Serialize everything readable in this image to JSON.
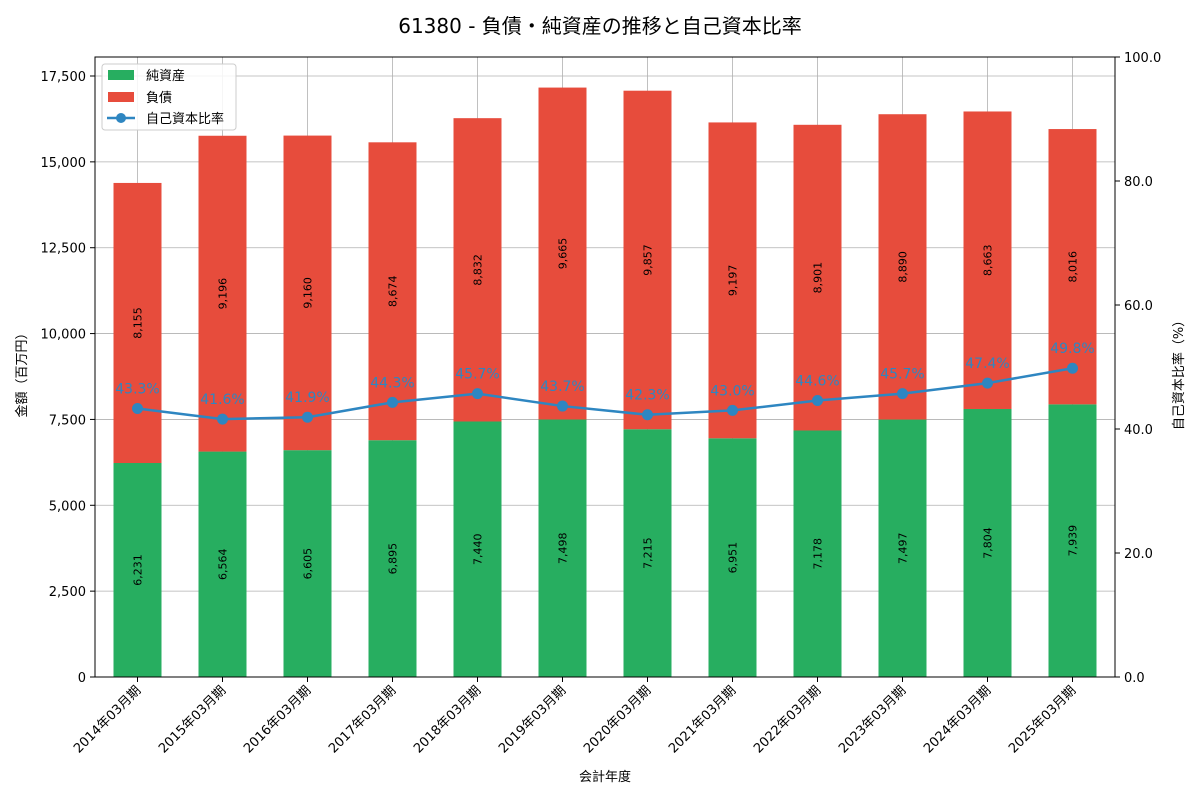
{
  "chart_data": {
    "type": "bar",
    "title": "61380 - 負債・純資産の推移と自己資本比率",
    "xlabel": "会計年度",
    "ylabel": "金額（百万円）",
    "y2label": "自己資本比率（%）",
    "ylim": [
      0,
      17500
    ],
    "y2lim": [
      0,
      100
    ],
    "stacked": true,
    "grid": true,
    "legend_position": "top-left",
    "categories": [
      "2014年03月期",
      "2015年03月期",
      "2016年03月期",
      "2017年03月期",
      "2018年03月期",
      "2019年03月期",
      "2020年03月期",
      "2021年03月期",
      "2022年03月期",
      "2023年03月期",
      "2024年03月期",
      "2025年03月期"
    ],
    "series": [
      {
        "name": "純資産",
        "type": "bar",
        "color": "#27ae60",
        "values": [
          6231,
          6564,
          6605,
          6895,
          7440,
          7498,
          7215,
          6951,
          7178,
          7497,
          7804,
          7939
        ],
        "labels": [
          "6,231",
          "6,564",
          "6,605",
          "6,895",
          "7,440",
          "7,498",
          "7,215",
          "6,951",
          "7,178",
          "7,497",
          "7,804",
          "7,939"
        ]
      },
      {
        "name": "負債",
        "type": "bar",
        "color": "#e74c3c",
        "values": [
          8155,
          9196,
          9160,
          8674,
          8832,
          9665,
          9857,
          9197,
          8901,
          8890,
          8663,
          8016
        ],
        "labels": [
          "8,155",
          "9,196",
          "9,160",
          "8,674",
          "8,832",
          "9,665",
          "9,857",
          "9,197",
          "8,901",
          "8,890",
          "8,663",
          "8,016"
        ]
      },
      {
        "name": "自己資本比率",
        "type": "line",
        "axis": "right",
        "color": "#2e86c1",
        "values": [
          43.3,
          41.6,
          41.9,
          44.3,
          45.7,
          43.7,
          42.3,
          43.0,
          44.6,
          45.7,
          47.4,
          49.8
        ],
        "labels": [
          "43.3%",
          "41.6%",
          "41.9%",
          "44.3%",
          "45.7%",
          "43.7%",
          "42.3%",
          "43.0%",
          "44.6%",
          "45.7%",
          "47.4%",
          "49.8%"
        ]
      }
    ],
    "y_ticks": [
      0,
      2500,
      5000,
      7500,
      10000,
      12500,
      15000,
      17500
    ],
    "y_tick_labels": [
      "0",
      "2,500",
      "5,000",
      "7,500",
      "10,000",
      "12,500",
      "15,000",
      "17,500"
    ],
    "y2_ticks": [
      0,
      20,
      40,
      60,
      80,
      100
    ],
    "y2_tick_labels": [
      "0.0",
      "20.0",
      "40.0",
      "60.0",
      "80.0",
      "100.0"
    ]
  }
}
